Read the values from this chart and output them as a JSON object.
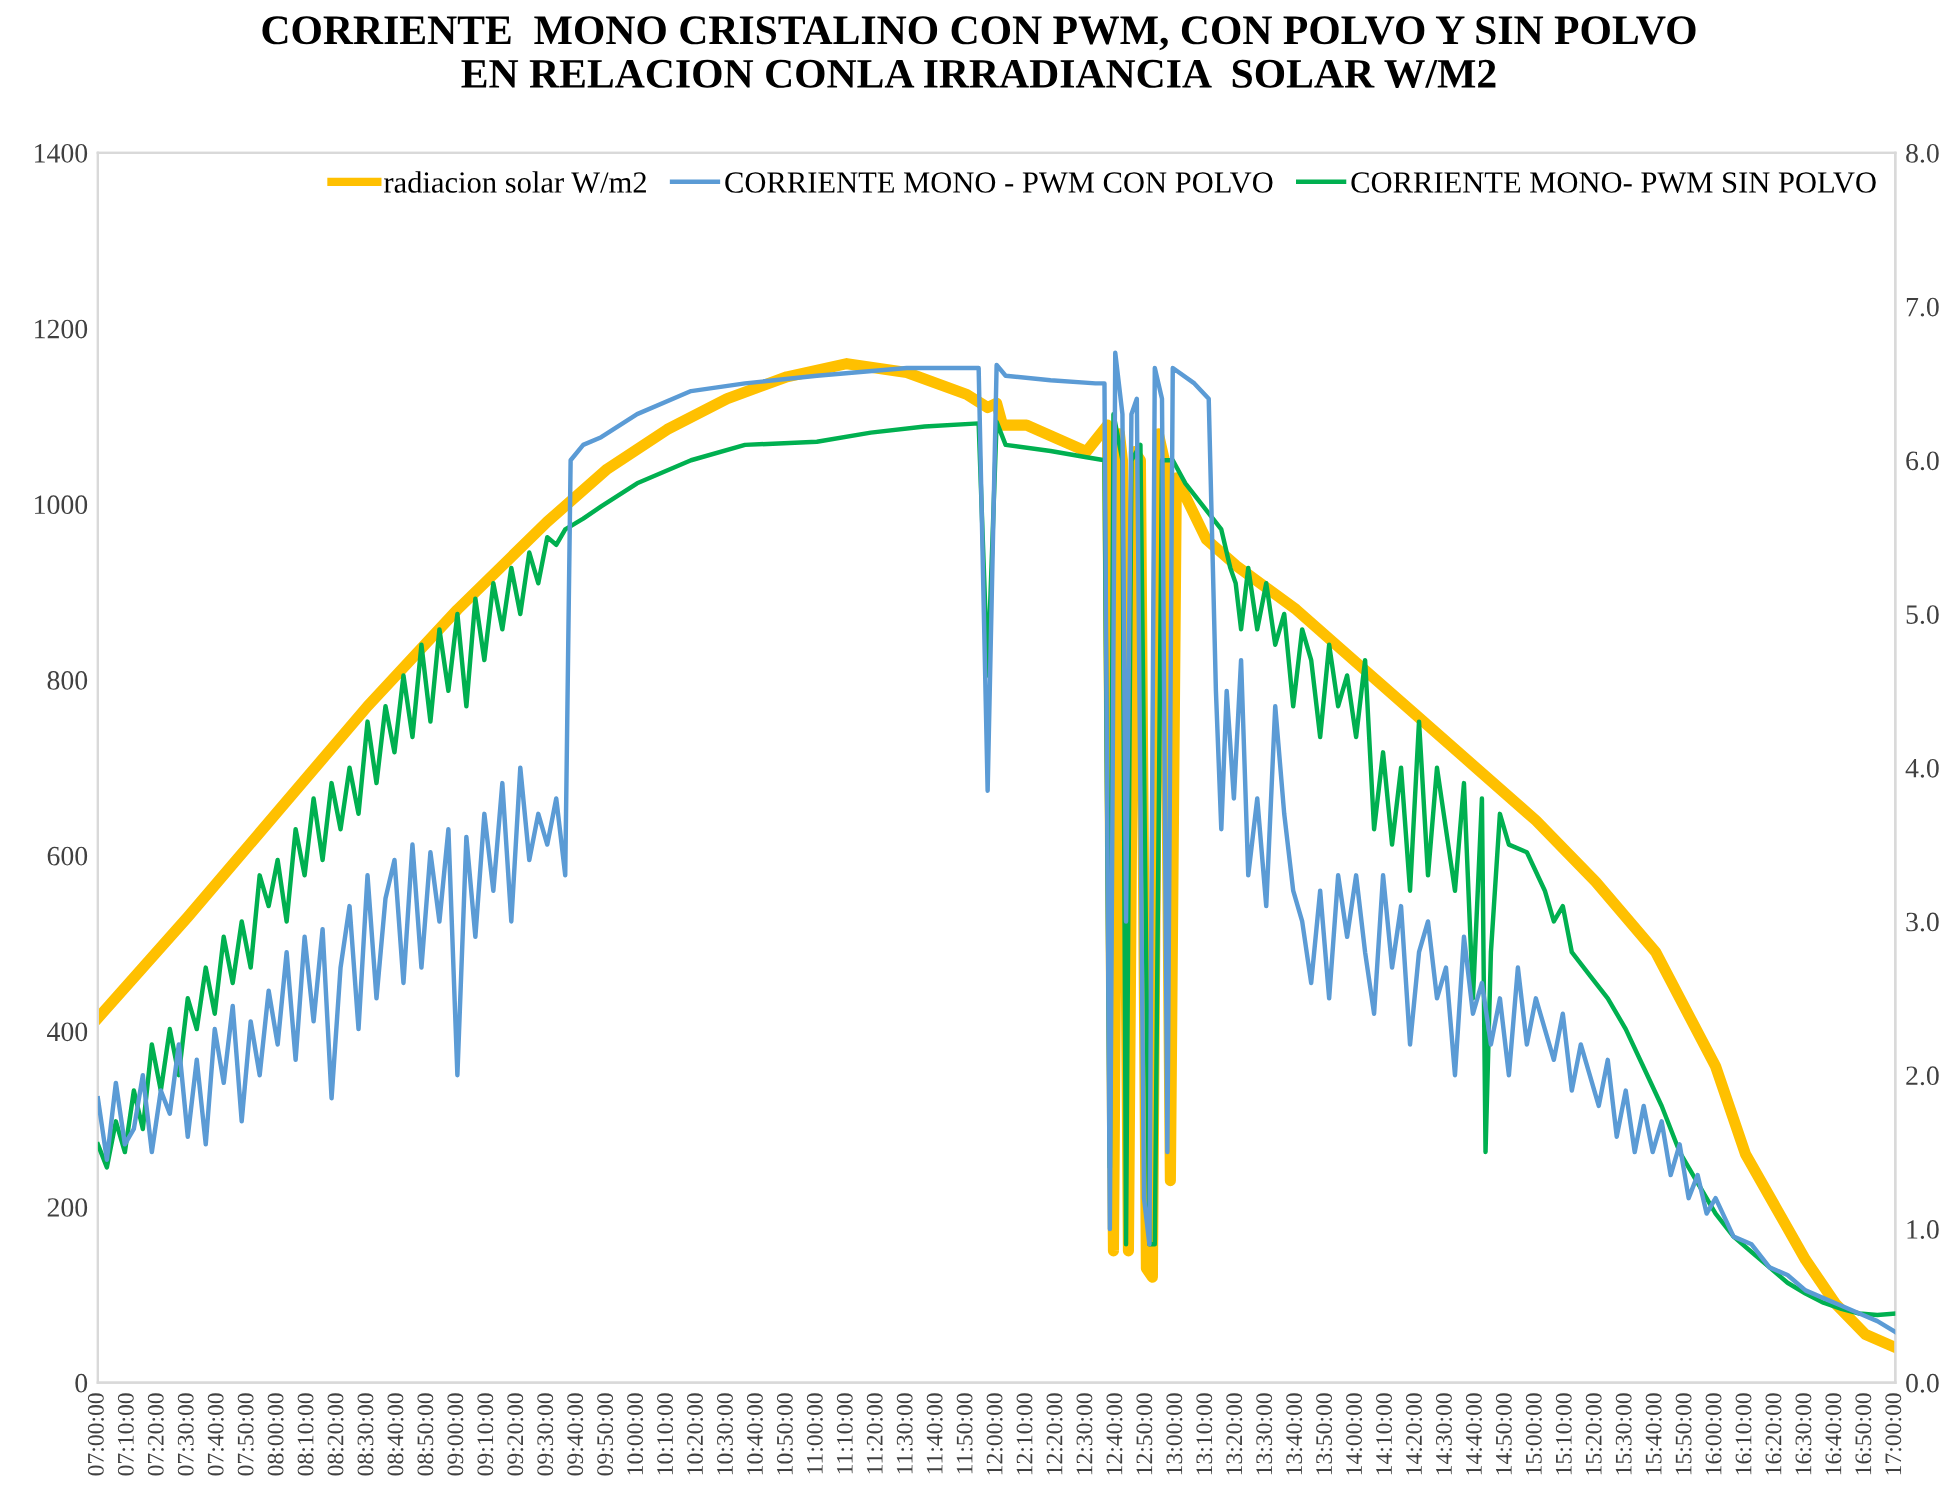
{
  "chart_data": {
    "type": "line",
    "title": "CORRIENTE  MONO CRISTALINO CON PWM, CON POLVO Y SIN POLVO\nEN RELACION CONLA IRRADIANCIA  SOLAR W/M2",
    "xlim": [
      7,
      17
    ],
    "xticks": [
      {
        "value": 7,
        "label": "07:00:00"
      },
      {
        "value": 7.1667,
        "label": "07:10:00"
      },
      {
        "value": 7.3333,
        "label": "07:20:00"
      },
      {
        "value": 7.5,
        "label": "07:30:00"
      },
      {
        "value": 7.6667,
        "label": "07:40:00"
      },
      {
        "value": 7.8333,
        "label": "07:50:00"
      },
      {
        "value": 8,
        "label": "08:00:00"
      },
      {
        "value": 8.1667,
        "label": "08:10:00"
      },
      {
        "value": 8.3333,
        "label": "08:20:00"
      },
      {
        "value": 8.5,
        "label": "08:30:00"
      },
      {
        "value": 8.6667,
        "label": "08:40:00"
      },
      {
        "value": 8.8333,
        "label": "08:50:00"
      },
      {
        "value": 9,
        "label": "09:00:00"
      },
      {
        "value": 9.1667,
        "label": "09:10:00"
      },
      {
        "value": 9.3333,
        "label": "09:20:00"
      },
      {
        "value": 9.5,
        "label": "09:30:00"
      },
      {
        "value": 9.6667,
        "label": "09:40:00"
      },
      {
        "value": 9.8333,
        "label": "09:50:00"
      },
      {
        "value": 10,
        "label": "10:00:00"
      },
      {
        "value": 10.1667,
        "label": "10:10:00"
      },
      {
        "value": 10.3333,
        "label": "10:20:00"
      },
      {
        "value": 10.5,
        "label": "10:30:00"
      },
      {
        "value": 10.6667,
        "label": "10:40:00"
      },
      {
        "value": 10.8333,
        "label": "10:50:00"
      },
      {
        "value": 11,
        "label": "11:00:00"
      },
      {
        "value": 11.1667,
        "label": "11:10:00"
      },
      {
        "value": 11.3333,
        "label": "11:20:00"
      },
      {
        "value": 11.5,
        "label": "11:30:00"
      },
      {
        "value": 11.6667,
        "label": "11:40:00"
      },
      {
        "value": 11.8333,
        "label": "11:50:00"
      },
      {
        "value": 12,
        "label": "12:00:00"
      },
      {
        "value": 12.1667,
        "label": "12:10:00"
      },
      {
        "value": 12.3333,
        "label": "12:20:00"
      },
      {
        "value": 12.5,
        "label": "12:30:00"
      },
      {
        "value": 12.6667,
        "label": "12:40:00"
      },
      {
        "value": 12.8333,
        "label": "12:50:00"
      },
      {
        "value": 13,
        "label": "13:00:00"
      },
      {
        "value": 13.1667,
        "label": "13:10:00"
      },
      {
        "value": 13.3333,
        "label": "13:20:00"
      },
      {
        "value": 13.5,
        "label": "13:30:00"
      },
      {
        "value": 13.6667,
        "label": "13:40:00"
      },
      {
        "value": 13.8333,
        "label": "13:50:00"
      },
      {
        "value": 14,
        "label": "14:00:00"
      },
      {
        "value": 14.1667,
        "label": "14:10:00"
      },
      {
        "value": 14.3333,
        "label": "14:20:00"
      },
      {
        "value": 14.5,
        "label": "14:30:00"
      },
      {
        "value": 14.6667,
        "label": "14:40:00"
      },
      {
        "value": 14.8333,
        "label": "14:50:00"
      },
      {
        "value": 15,
        "label": "15:00:00"
      },
      {
        "value": 15.1667,
        "label": "15:10:00"
      },
      {
        "value": 15.3333,
        "label": "15:20:00"
      },
      {
        "value": 15.5,
        "label": "15:30:00"
      },
      {
        "value": 15.6667,
        "label": "15:40:00"
      },
      {
        "value": 15.8333,
        "label": "15:50:00"
      },
      {
        "value": 16,
        "label": "16:00:00"
      },
      {
        "value": 16.1667,
        "label": "16:10:00"
      },
      {
        "value": 16.3333,
        "label": "16:20:00"
      },
      {
        "value": 16.5,
        "label": "16:30:00"
      },
      {
        "value": 16.6667,
        "label": "16:40:00"
      },
      {
        "value": 16.8333,
        "label": "16:50:00"
      },
      {
        "value": 17,
        "label": "17:00:00"
      }
    ],
    "ylim": [
      0,
      1400
    ],
    "yticks": [
      0,
      200,
      400,
      600,
      800,
      1000,
      1200,
      1400
    ],
    "y2lim": [
      0,
      8
    ],
    "y2ticks": [
      {
        "value": 0,
        "label": "0.0"
      },
      {
        "value": 1,
        "label": "1.0"
      },
      {
        "value": 2,
        "label": "2.0"
      },
      {
        "value": 3,
        "label": "3.0"
      },
      {
        "value": 4,
        "label": "4.0"
      },
      {
        "value": 5,
        "label": "5.0"
      },
      {
        "value": 6,
        "label": "6.0"
      },
      {
        "value": 7,
        "label": "7.0"
      },
      {
        "value": 8,
        "label": "8.0"
      }
    ],
    "grid": false,
    "legend": "top right",
    "series": [
      {
        "name": "radiacion solar W/m2",
        "color": "#ffc000",
        "x": [
          7,
          7.5,
          8,
          8.5,
          9,
          9.5,
          9.8333,
          10.1667,
          10.5,
          10.8333,
          11.1667,
          11.5,
          11.8333,
          11.95,
          12,
          12.0333,
          12.1667,
          12.3333,
          12.5,
          12.6167,
          12.65,
          12.6833,
          12.7,
          12.7333,
          12.7667,
          12.8,
          12.8333,
          12.8667,
          12.9,
          12.9333,
          12.9667,
          13,
          13.1667,
          13.3333,
          13.6667,
          14,
          14.3333,
          14.6667,
          15,
          15.3333,
          15.6667,
          16,
          16.1667,
          16.3333,
          16.5,
          16.6667,
          16.8333,
          17
        ],
        "values": [
          415,
          530,
          650,
          770,
          880,
          980,
          1040,
          1085,
          1120,
          1145,
          1160,
          1150,
          1125,
          1110,
          1115,
          1090,
          1090,
          1075,
          1060,
          1090,
          150,
          1080,
          1050,
          150,
          1060,
          1050,
          130,
          120,
          1080,
          1050,
          230,
          1030,
          960,
          930,
          880,
          820,
          760,
          700,
          640,
          570,
          490,
          360,
          260,
          200,
          140,
          90,
          55,
          40
        ]
      },
      {
        "name": "CORRIENTE MONO - PWM CON POLVO",
        "color": "#5b9bd5",
        "axis": "y2",
        "x": [
          7.0,
          7.05,
          7.1,
          7.15,
          7.2,
          7.25,
          7.3,
          7.35,
          7.4,
          7.45,
          7.5,
          7.55,
          7.6,
          7.65,
          7.7,
          7.75,
          7.8,
          7.85,
          7.9,
          7.95,
          8.0,
          8.05,
          8.1,
          8.15,
          8.2,
          8.25,
          8.3,
          8.35,
          8.4,
          8.45,
          8.5,
          8.55,
          8.6,
          8.65,
          8.7,
          8.75,
          8.8,
          8.85,
          8.9,
          8.95,
          9.0,
          9.05,
          9.1,
          9.15,
          9.2,
          9.25,
          9.3,
          9.35,
          9.4,
          9.45,
          9.5,
          9.55,
          9.6,
          9.63,
          9.7,
          9.8,
          10.0,
          10.3,
          10.6,
          11.0,
          11.5,
          11.9,
          11.95,
          12.0,
          12.05,
          12.3,
          12.55,
          12.6,
          12.63,
          12.66,
          12.7,
          12.72,
          12.75,
          12.78,
          12.82,
          12.85,
          12.88,
          12.92,
          12.95,
          12.98,
          13.1,
          13.18,
          13.22,
          13.25,
          13.28,
          13.32,
          13.36,
          13.4,
          13.45,
          13.5,
          13.55,
          13.6,
          13.65,
          13.7,
          13.75,
          13.8,
          13.85,
          13.9,
          13.95,
          14.0,
          14.05,
          14.1,
          14.15,
          14.2,
          14.25,
          14.3,
          14.35,
          14.4,
          14.45,
          14.5,
          14.55,
          14.6,
          14.65,
          14.7,
          14.75,
          14.8,
          14.85,
          14.9,
          14.95,
          15.0,
          15.05,
          15.1,
          15.15,
          15.2,
          15.25,
          15.3,
          15.35,
          15.4,
          15.45,
          15.5,
          15.55,
          15.6,
          15.65,
          15.7,
          15.75,
          15.8,
          15.85,
          15.9,
          15.95,
          16.0,
          16.1,
          16.2,
          16.3,
          16.4,
          16.5,
          16.6,
          16.7,
          16.8,
          16.9,
          17.0
        ],
        "values": [
          1.85,
          1.45,
          1.95,
          1.55,
          1.65,
          2.0,
          1.5,
          1.9,
          1.75,
          2.2,
          1.6,
          2.1,
          1.55,
          2.3,
          1.95,
          2.45,
          1.7,
          2.35,
          2.0,
          2.55,
          2.2,
          2.8,
          2.1,
          2.9,
          2.35,
          2.95,
          1.85,
          2.7,
          3.1,
          2.3,
          3.3,
          2.5,
          3.15,
          3.4,
          2.6,
          3.5,
          2.7,
          3.45,
          3.0,
          3.6,
          2.0,
          3.55,
          2.9,
          3.7,
          3.2,
          3.9,
          3.0,
          4.0,
          3.4,
          3.7,
          3.5,
          3.8,
          3.3,
          6.0,
          6.1,
          6.15,
          6.3,
          6.45,
          6.5,
          6.55,
          6.6,
          6.6,
          3.85,
          6.62,
          6.55,
          6.52,
          6.5,
          6.5,
          1.0,
          6.7,
          6.3,
          3.0,
          6.3,
          6.4,
          1.2,
          0.9,
          6.6,
          6.4,
          1.5,
          6.6,
          6.5,
          6.4,
          4.5,
          3.6,
          4.5,
          3.8,
          4.7,
          3.3,
          3.8,
          3.1,
          4.4,
          3.7,
          3.2,
          3.0,
          2.6,
          3.2,
          2.5,
          3.3,
          2.9,
          3.3,
          2.8,
          2.4,
          3.3,
          2.7,
          3.1,
          2.2,
          2.8,
          3.0,
          2.5,
          2.7,
          2.0,
          2.9,
          2.4,
          2.6,
          2.2,
          2.5,
          2.0,
          2.7,
          2.2,
          2.5,
          2.3,
          2.1,
          2.4,
          1.9,
          2.2,
          2.0,
          1.8,
          2.1,
          1.6,
          1.9,
          1.5,
          1.8,
          1.5,
          1.7,
          1.35,
          1.55,
          1.2,
          1.35,
          1.1,
          1.2,
          0.95,
          0.9,
          0.75,
          0.7,
          0.6,
          0.55,
          0.5,
          0.45,
          0.4,
          0.33
        ]
      },
      {
        "name": "CORRIENTE MONO- PWM SIN POLVO",
        "color": "#00b050",
        "axis": "y2",
        "x": [
          7.0,
          7.05,
          7.1,
          7.15,
          7.2,
          7.25,
          7.3,
          7.35,
          7.4,
          7.45,
          7.5,
          7.55,
          7.6,
          7.65,
          7.7,
          7.75,
          7.8,
          7.85,
          7.9,
          7.95,
          8.0,
          8.05,
          8.1,
          8.15,
          8.2,
          8.25,
          8.3,
          8.35,
          8.4,
          8.45,
          8.5,
          8.55,
          8.6,
          8.65,
          8.7,
          8.75,
          8.8,
          8.85,
          8.9,
          8.95,
          9.0,
          9.05,
          9.1,
          9.15,
          9.2,
          9.25,
          9.3,
          9.35,
          9.4,
          9.45,
          9.5,
          9.55,
          9.6,
          9.7,
          9.8,
          10.0,
          10.3,
          10.6,
          11.0,
          11.3,
          11.6,
          11.9,
          11.95,
          12.0,
          12.05,
          12.3,
          12.5,
          12.6,
          12.63,
          12.65,
          12.7,
          12.72,
          12.75,
          12.8,
          12.85,
          12.88,
          12.92,
          12.98,
          13.05,
          13.15,
          13.25,
          13.3,
          13.33,
          13.36,
          13.4,
          13.45,
          13.5,
          13.55,
          13.6,
          13.65,
          13.7,
          13.75,
          13.8,
          13.85,
          13.9,
          13.95,
          14.0,
          14.05,
          14.1,
          14.15,
          14.2,
          14.25,
          14.3,
          14.35,
          14.4,
          14.45,
          14.5,
          14.55,
          14.6,
          14.65,
          14.7,
          14.72,
          14.75,
          14.8,
          14.85,
          14.95,
          15.05,
          15.1,
          15.15,
          15.2,
          15.3,
          15.4,
          15.5,
          15.6,
          15.7,
          15.8,
          15.9,
          16.0,
          16.1,
          16.2,
          16.3,
          16.4,
          16.5,
          16.6,
          16.7,
          16.8,
          16.9,
          17.0
        ],
        "values": [
          1.55,
          1.4,
          1.7,
          1.5,
          1.9,
          1.65,
          2.2,
          1.9,
          2.3,
          2.0,
          2.5,
          2.3,
          2.7,
          2.4,
          2.9,
          2.6,
          3.0,
          2.7,
          3.3,
          3.1,
          3.4,
          3.0,
          3.6,
          3.3,
          3.8,
          3.4,
          3.9,
          3.6,
          4.0,
          3.7,
          4.3,
          3.9,
          4.4,
          4.1,
          4.6,
          4.2,
          4.8,
          4.3,
          4.9,
          4.5,
          5.0,
          4.4,
          5.1,
          4.7,
          5.2,
          4.9,
          5.3,
          5.0,
          5.4,
          5.2,
          5.5,
          5.45,
          5.55,
          5.62,
          5.7,
          5.85,
          6.0,
          6.1,
          6.12,
          6.18,
          6.22,
          6.24,
          4.6,
          6.25,
          6.1,
          6.06,
          6.02,
          6.0,
          1.4,
          6.3,
          6.0,
          0.9,
          6.0,
          6.1,
          0.9,
          0.9,
          6.0,
          6.0,
          5.85,
          5.7,
          5.55,
          5.3,
          5.2,
          4.9,
          5.3,
          4.9,
          5.2,
          4.8,
          5.0,
          4.4,
          4.9,
          4.7,
          4.2,
          4.8,
          4.4,
          4.6,
          4.2,
          4.7,
          3.6,
          4.1,
          3.5,
          4.0,
          3.2,
          4.3,
          3.3,
          4.0,
          3.6,
          3.2,
          3.9,
          2.5,
          3.8,
          1.5,
          2.8,
          3.7,
          3.5,
          3.45,
          3.2,
          3.0,
          3.1,
          2.8,
          2.65,
          2.5,
          2.3,
          2.05,
          1.8,
          1.5,
          1.3,
          1.1,
          0.95,
          0.85,
          0.75,
          0.65,
          0.58,
          0.52,
          0.48,
          0.45,
          0.44,
          0.45
        ]
      }
    ]
  }
}
